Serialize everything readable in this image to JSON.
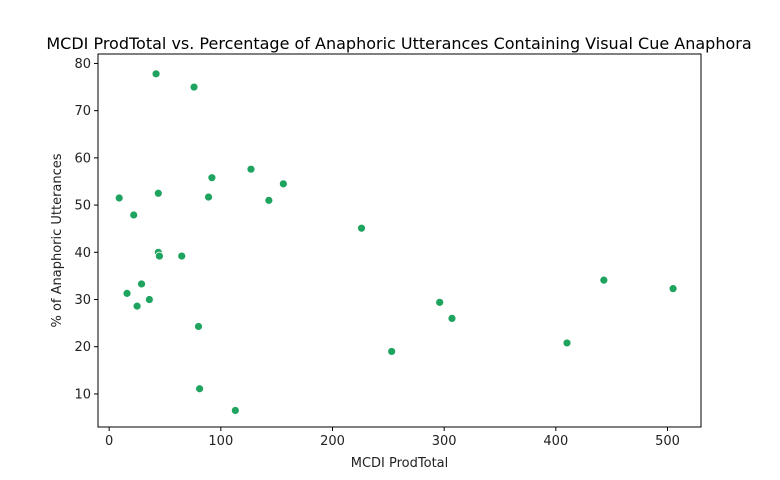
{
  "chart_data": {
    "type": "scatter",
    "title": "MCDI ProdTotal vs. Percentage of Anaphoric Utterances Containing Visual Cue Anaphora",
    "xlabel": "MCDI ProdTotal",
    "ylabel": "% of Anaphoric Utterances",
    "xlim": [
      -10,
      530
    ],
    "ylim": [
      3,
      82
    ],
    "xticks": [
      0,
      100,
      200,
      300,
      400,
      500
    ],
    "yticks": [
      10,
      20,
      30,
      40,
      50,
      60,
      70,
      80
    ],
    "grid": false,
    "marker_color": "#1fa460",
    "points": [
      {
        "x": 42,
        "y": 77.8
      },
      {
        "x": 76,
        "y": 75.0
      },
      {
        "x": 127,
        "y": 57.6
      },
      {
        "x": 92,
        "y": 55.8
      },
      {
        "x": 156,
        "y": 54.5
      },
      {
        "x": 44,
        "y": 52.5
      },
      {
        "x": 89,
        "y": 51.7
      },
      {
        "x": 9,
        "y": 51.5
      },
      {
        "x": 143,
        "y": 51.0
      },
      {
        "x": 22,
        "y": 47.9
      },
      {
        "x": 226,
        "y": 45.1
      },
      {
        "x": 44,
        "y": 40.0
      },
      {
        "x": 45,
        "y": 39.2
      },
      {
        "x": 65,
        "y": 39.2
      },
      {
        "x": 443,
        "y": 34.1
      },
      {
        "x": 29,
        "y": 33.3
      },
      {
        "x": 505,
        "y": 32.3
      },
      {
        "x": 16,
        "y": 31.3
      },
      {
        "x": 36,
        "y": 30.0
      },
      {
        "x": 296,
        "y": 29.4
      },
      {
        "x": 25,
        "y": 28.6
      },
      {
        "x": 307,
        "y": 26.0
      },
      {
        "x": 80,
        "y": 24.3
      },
      {
        "x": 410,
        "y": 20.8
      },
      {
        "x": 253,
        "y": 19.0
      },
      {
        "x": 81,
        "y": 11.1
      },
      {
        "x": 113,
        "y": 6.5
      }
    ]
  }
}
